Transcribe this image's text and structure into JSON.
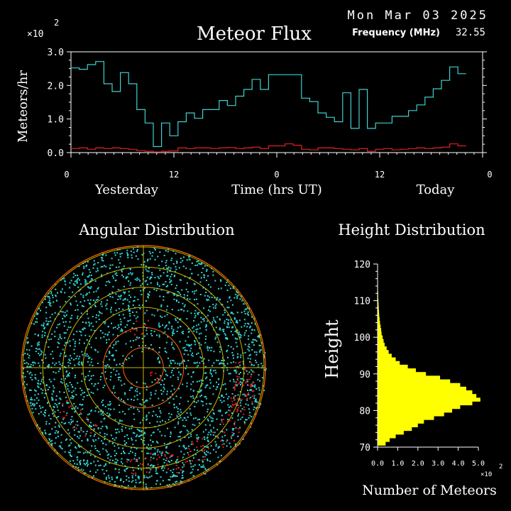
{
  "header": {
    "date": "Mon Mar 03 2025",
    "frequency_label": "Frequency (MHz)",
    "frequency_value": "32.55"
  },
  "colors": {
    "background": "#000000",
    "axes": "#ffffff",
    "flux_main": "#40d0d0",
    "flux_secondary": "#e02020",
    "histogram": "#ffff00",
    "polar_rings_outer": "#ff6a00",
    "polar_rings_inner": "#c8b400",
    "polar_points_main": "#30d8d8",
    "polar_points_secondary": "#e02020"
  },
  "chart_data": [
    {
      "id": "meteor-flux",
      "type": "line",
      "title": "Meteor Flux",
      "xlabel": "Time (hrs UT)",
      "ylabel": "Meteors/hr",
      "y_multiplier": "×10",
      "y_multiplier_exp": "2",
      "ylim": [
        0,
        3.0
      ],
      "xlim": [
        0,
        48
      ],
      "yticks": [
        "0.0",
        "1.0",
        "2.0",
        "3.0"
      ],
      "xticks": [
        {
          "x": 0,
          "label": "0"
        },
        {
          "x": 12,
          "label": "12"
        },
        {
          "x": 24,
          "label": "0"
        },
        {
          "x": 36,
          "label": "12"
        },
        {
          "x": 48,
          "label": "0"
        }
      ],
      "day_labels": [
        {
          "x": 6.5,
          "label": "Yesterday"
        },
        {
          "x": 24,
          "label": "Time (hrs UT)"
        },
        {
          "x": 42.5,
          "label": "Today"
        }
      ],
      "step": 0.96,
      "series": [
        {
          "values": [
            2.52,
            2.48,
            2.62,
            2.71,
            2.05,
            1.82,
            2.38,
            2.05,
            1.28,
            0.88,
            0.18,
            0.88,
            0.5,
            0.92,
            1.18,
            1.02,
            1.28,
            1.28,
            1.55,
            1.4,
            1.68,
            1.88,
            2.18,
            1.88,
            2.32,
            2.32,
            2.32,
            2.32,
            1.62,
            1.52,
            1.18,
            1.05,
            0.92,
            1.78,
            0.72,
            1.88,
            0.72,
            0.88,
            0.88,
            1.08,
            1.08,
            1.25,
            1.42,
            1.65,
            1.9,
            2.15,
            2.55,
            2.35
          ]
        },
        {
          "values": [
            0.12,
            0.14,
            0.1,
            0.14,
            0.12,
            0.14,
            0.12,
            0.1,
            0.06,
            0.04,
            0.02,
            0.04,
            0.05,
            0.14,
            0.12,
            0.14,
            0.14,
            0.12,
            0.14,
            0.15,
            0.12,
            0.14,
            0.16,
            0.12,
            0.2,
            0.2,
            0.26,
            0.22,
            0.1,
            0.08,
            0.14,
            0.14,
            0.12,
            0.1,
            0.08,
            0.12,
            0.04,
            0.1,
            0.12,
            0.08,
            0.1,
            0.12,
            0.14,
            0.12,
            0.14,
            0.16,
            0.26,
            0.2
          ]
        }
      ]
    },
    {
      "id": "angular-distribution",
      "type": "scatter",
      "title": "Angular Distribution",
      "rings": 6
    },
    {
      "id": "height-distribution",
      "type": "bar",
      "orientation": "horizontal",
      "title": "Height Distribution",
      "ylabel": "Height",
      "xlabel": "Number of Meteors",
      "x_multiplier": "×10",
      "x_multiplier_exp": "2",
      "ylim": [
        70,
        120
      ],
      "xlim": [
        0,
        5.0
      ],
      "yticks": [
        "70",
        "80",
        "90",
        "100",
        "110",
        "120"
      ],
      "xticks": [
        "0.0",
        "1.0",
        "2.0",
        "3.0",
        "4.0",
        "5.0"
      ],
      "bin_start": 71,
      "bin_width": 1,
      "values": [
        0.4,
        0.6,
        0.9,
        1.3,
        1.7,
        2.0,
        2.3,
        2.8,
        3.3,
        3.7,
        4.1,
        4.7,
        5.1,
        4.9,
        4.7,
        4.4,
        4.1,
        3.6,
        3.1,
        2.4,
        1.9,
        1.5,
        1.1,
        0.9,
        0.7,
        0.55,
        0.45,
        0.35,
        0.3,
        0.25,
        0.2,
        0.18,
        0.15,
        0.12,
        0.1,
        0.08,
        0.07,
        0.06,
        0.05,
        0.04,
        0.03,
        0.03,
        0.02,
        0.02,
        0.02,
        0.01,
        0.01,
        0.01,
        0.01
      ]
    }
  ]
}
